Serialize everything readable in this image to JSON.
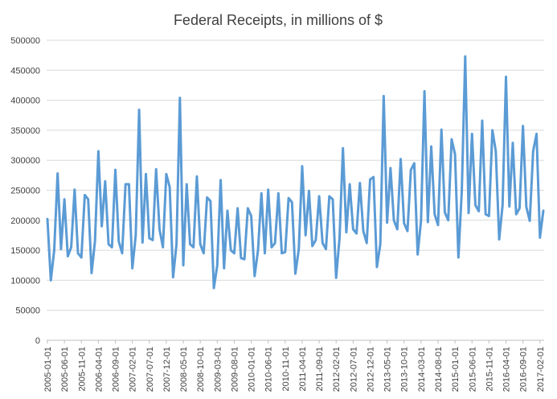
{
  "chart_data": {
    "type": "line",
    "title": "Federal Receipts, in millions of $",
    "xlabel": "",
    "ylabel": "",
    "ylim": [
      0,
      500000
    ],
    "y_ticks": [
      0,
      50000,
      100000,
      150000,
      200000,
      250000,
      300000,
      350000,
      400000,
      450000,
      500000
    ],
    "y_tick_labels": [
      "0",
      "50000",
      "100000",
      "150000",
      "200000",
      "250000",
      "300000",
      "350000",
      "400000",
      "450000",
      "500000"
    ],
    "x_tick_labels": [
      "2005-01-01",
      "2005-06-01",
      "2005-11-01",
      "2006-04-01",
      "2006-09-01",
      "2007-02-01",
      "2007-07-01",
      "2007-12-01",
      "2008-05-01",
      "2008-10-01",
      "2009-03-01",
      "2009-08-01",
      "2010-01-01",
      "2010-06-01",
      "2010-11-01",
      "2011-04-01",
      "2011-09-01",
      "2012-02-01",
      "2012-07-01",
      "2012-12-01",
      "2013-05-01",
      "2013-10-01",
      "2014-03-01",
      "2014-08-01",
      "2015-01-01",
      "2015-06-01",
      "2015-11-01",
      "2016-04-01",
      "2016-09-01",
      "2017-02-01"
    ],
    "grid": true,
    "line_color": "#5b9bd5",
    "series": [
      {
        "values": [
          202000,
          100000,
          150000,
          278000,
          152000,
          235000,
          140000,
          155000,
          251000,
          145000,
          138000,
          242000,
          235000,
          112000,
          165000,
          315000,
          190000,
          265000,
          160000,
          155000,
          284000,
          165000,
          145000,
          260000,
          260000,
          120000,
          175000,
          384000,
          163000,
          277000,
          170000,
          167000,
          285000,
          185000,
          155000,
          277000,
          255000,
          105000,
          160000,
          404000,
          125000,
          260000,
          160000,
          155000,
          273000,
          160000,
          145000,
          238000,
          232000,
          87000,
          125000,
          267000,
          120000,
          216000,
          150000,
          145000,
          220000,
          137000,
          135000,
          220000,
          207000,
          107000,
          150000,
          245000,
          145000,
          251000,
          155000,
          162000,
          245000,
          145000,
          147000,
          237000,
          230000,
          111000,
          152000,
          290000,
          175000,
          249000,
          157000,
          167000,
          240000,
          162000,
          152000,
          240000,
          235000,
          104000,
          170000,
          320000,
          180000,
          260000,
          185000,
          178000,
          262000,
          182000,
          162000,
          268000,
          272000,
          122000,
          160000,
          407000,
          196000,
          287000,
          200000,
          185000,
          302000,
          195000,
          182000,
          284000,
          295000,
          143000,
          200000,
          415000,
          197000,
          323000,
          210000,
          192000,
          351000,
          213000,
          200000,
          335000,
          310000,
          138000,
          250000,
          473000,
          212000,
          344000,
          225000,
          215000,
          366000,
          210000,
          207000,
          350000,
          315000,
          168000,
          225000,
          439000,
          223000,
          329000,
          210000,
          220000,
          357000,
          222000,
          199000,
          315000,
          344000,
          171000,
          216000
        ]
      }
    ]
  }
}
